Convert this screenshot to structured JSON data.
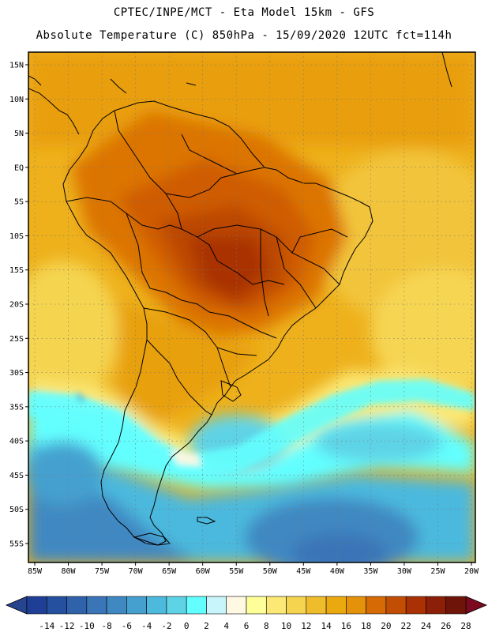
{
  "header": {
    "line1": "CPTEC/INPE/MCT -  Eta Model 15km - GFS",
    "line2": "Absolute Temperature (C) 850hPa - 15/09/2020 12UTC fct=114h"
  },
  "map": {
    "lat_labels": [
      "15N",
      "10N",
      "5N",
      "EQ",
      "5S",
      "10S",
      "15S",
      "20S",
      "25S",
      "30S",
      "35S",
      "40S",
      "45S",
      "50S",
      "55S"
    ],
    "lon_labels": [
      "85W",
      "80W",
      "75W",
      "70W",
      "65W",
      "60W",
      "55W",
      "50W",
      "45W",
      "40W",
      "35W",
      "30W",
      "25W",
      "20W"
    ],
    "lat_values": [
      15,
      10,
      5,
      0,
      -5,
      -10,
      -15,
      -20,
      -25,
      -30,
      -35,
      -40,
      -45,
      -50,
      -55
    ],
    "lon_values": [
      -85,
      -80,
      -75,
      -70,
      -65,
      -60,
      -55,
      -50,
      -45,
      -40,
      -35,
      -30,
      -25,
      -20
    ]
  },
  "colorbar": {
    "labels": [
      "-14",
      "-12",
      "-10",
      "-8",
      "-6",
      "-4",
      "-2",
      "0",
      "2",
      "4",
      "6",
      "8",
      "10",
      "12",
      "14",
      "16",
      "18",
      "20",
      "22",
      "24",
      "26",
      "28"
    ],
    "colors": [
      "#1f3f96",
      "#25509f",
      "#2f62ab",
      "#3a75b7",
      "#3f88c2",
      "#45a0cf",
      "#4cb9dd",
      "#5fd3e6",
      "#63ffff",
      "#c8f5fb",
      "#fff8e3",
      "#ffff99",
      "#fbe875",
      "#f5d44f",
      "#efbd2c",
      "#eaa90e",
      "#e4920a",
      "#d66a05",
      "#c24e04",
      "#a93103",
      "#8c1f07",
      "#6f1408"
    ],
    "under_color": "#27448f",
    "over_color": "#7b0a1e"
  }
}
